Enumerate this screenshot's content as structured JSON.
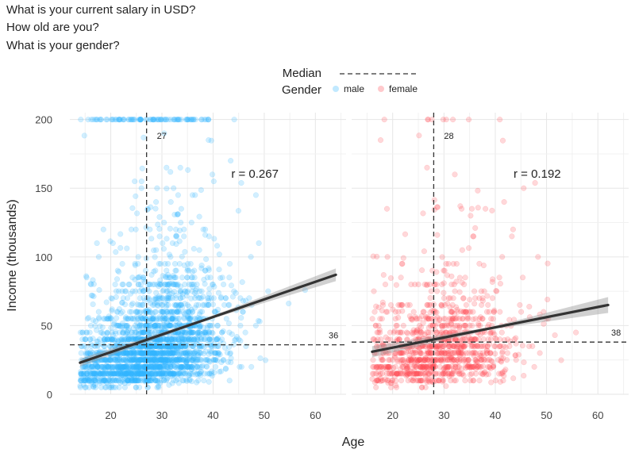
{
  "questions": [
    "What is your current salary in USD?",
    "How old are you?",
    "What is your gender?"
  ],
  "colors": {
    "male": "#33b5ff",
    "female": "#ff4d55",
    "trend": "#333333",
    "band": "#999999",
    "grid": "#e6e6e6"
  },
  "chart_data": {
    "type": "scatter",
    "xlabel": "Age",
    "ylabel": "Income (thousands)",
    "legend": {
      "median_title": "Median",
      "gender_title": "Gender",
      "position": "top"
    },
    "shared_axes": {
      "xlim": [
        12,
        66
      ],
      "ylim": [
        0,
        205
      ],
      "x_ticks": [
        20,
        30,
        40,
        50,
        60
      ],
      "y_ticks": [
        0,
        50,
        100,
        150,
        200
      ]
    },
    "series": [
      {
        "name": "male",
        "panel": 0,
        "median_age": 27,
        "median_age_label": "27",
        "median_income": 36,
        "median_income_label": "36",
        "r_label": "r = 0.267",
        "trend": {
          "x": [
            14,
            64
          ],
          "y": [
            23,
            87
          ]
        },
        "x_range": [
          14,
          64
        ],
        "income_cap": 200
      },
      {
        "name": "female",
        "panel": 1,
        "median_age": 28,
        "median_age_label": "28",
        "median_income": 38,
        "median_income_label": "38",
        "r_label": "r = 0.192",
        "trend": {
          "x": [
            16,
            62
          ],
          "y": [
            31,
            65
          ]
        },
        "x_range": [
          16,
          63
        ],
        "income_cap": 200
      }
    ]
  }
}
